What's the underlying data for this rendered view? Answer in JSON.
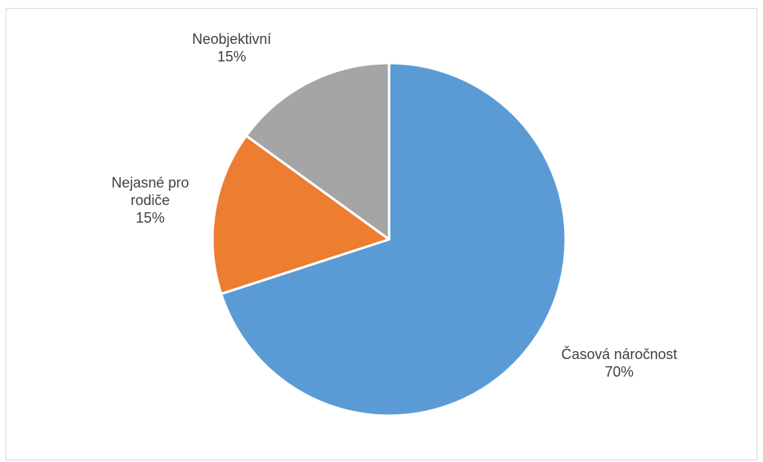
{
  "chart_data": {
    "type": "pie",
    "title": "",
    "slices": [
      {
        "label": "Časová náročnost",
        "value": 70,
        "display": "70%",
        "color": "#5b9bd5"
      },
      {
        "label": "Nejasné pro rodiče",
        "value": 15,
        "display": "15%",
        "color": "#ed7d31"
      },
      {
        "label": "Neobjektivní",
        "value": 15,
        "display": "15%",
        "color": "#a5a5a5"
      }
    ],
    "legend": "none",
    "start_angle": "12 o'clock",
    "direction": "clockwise"
  }
}
